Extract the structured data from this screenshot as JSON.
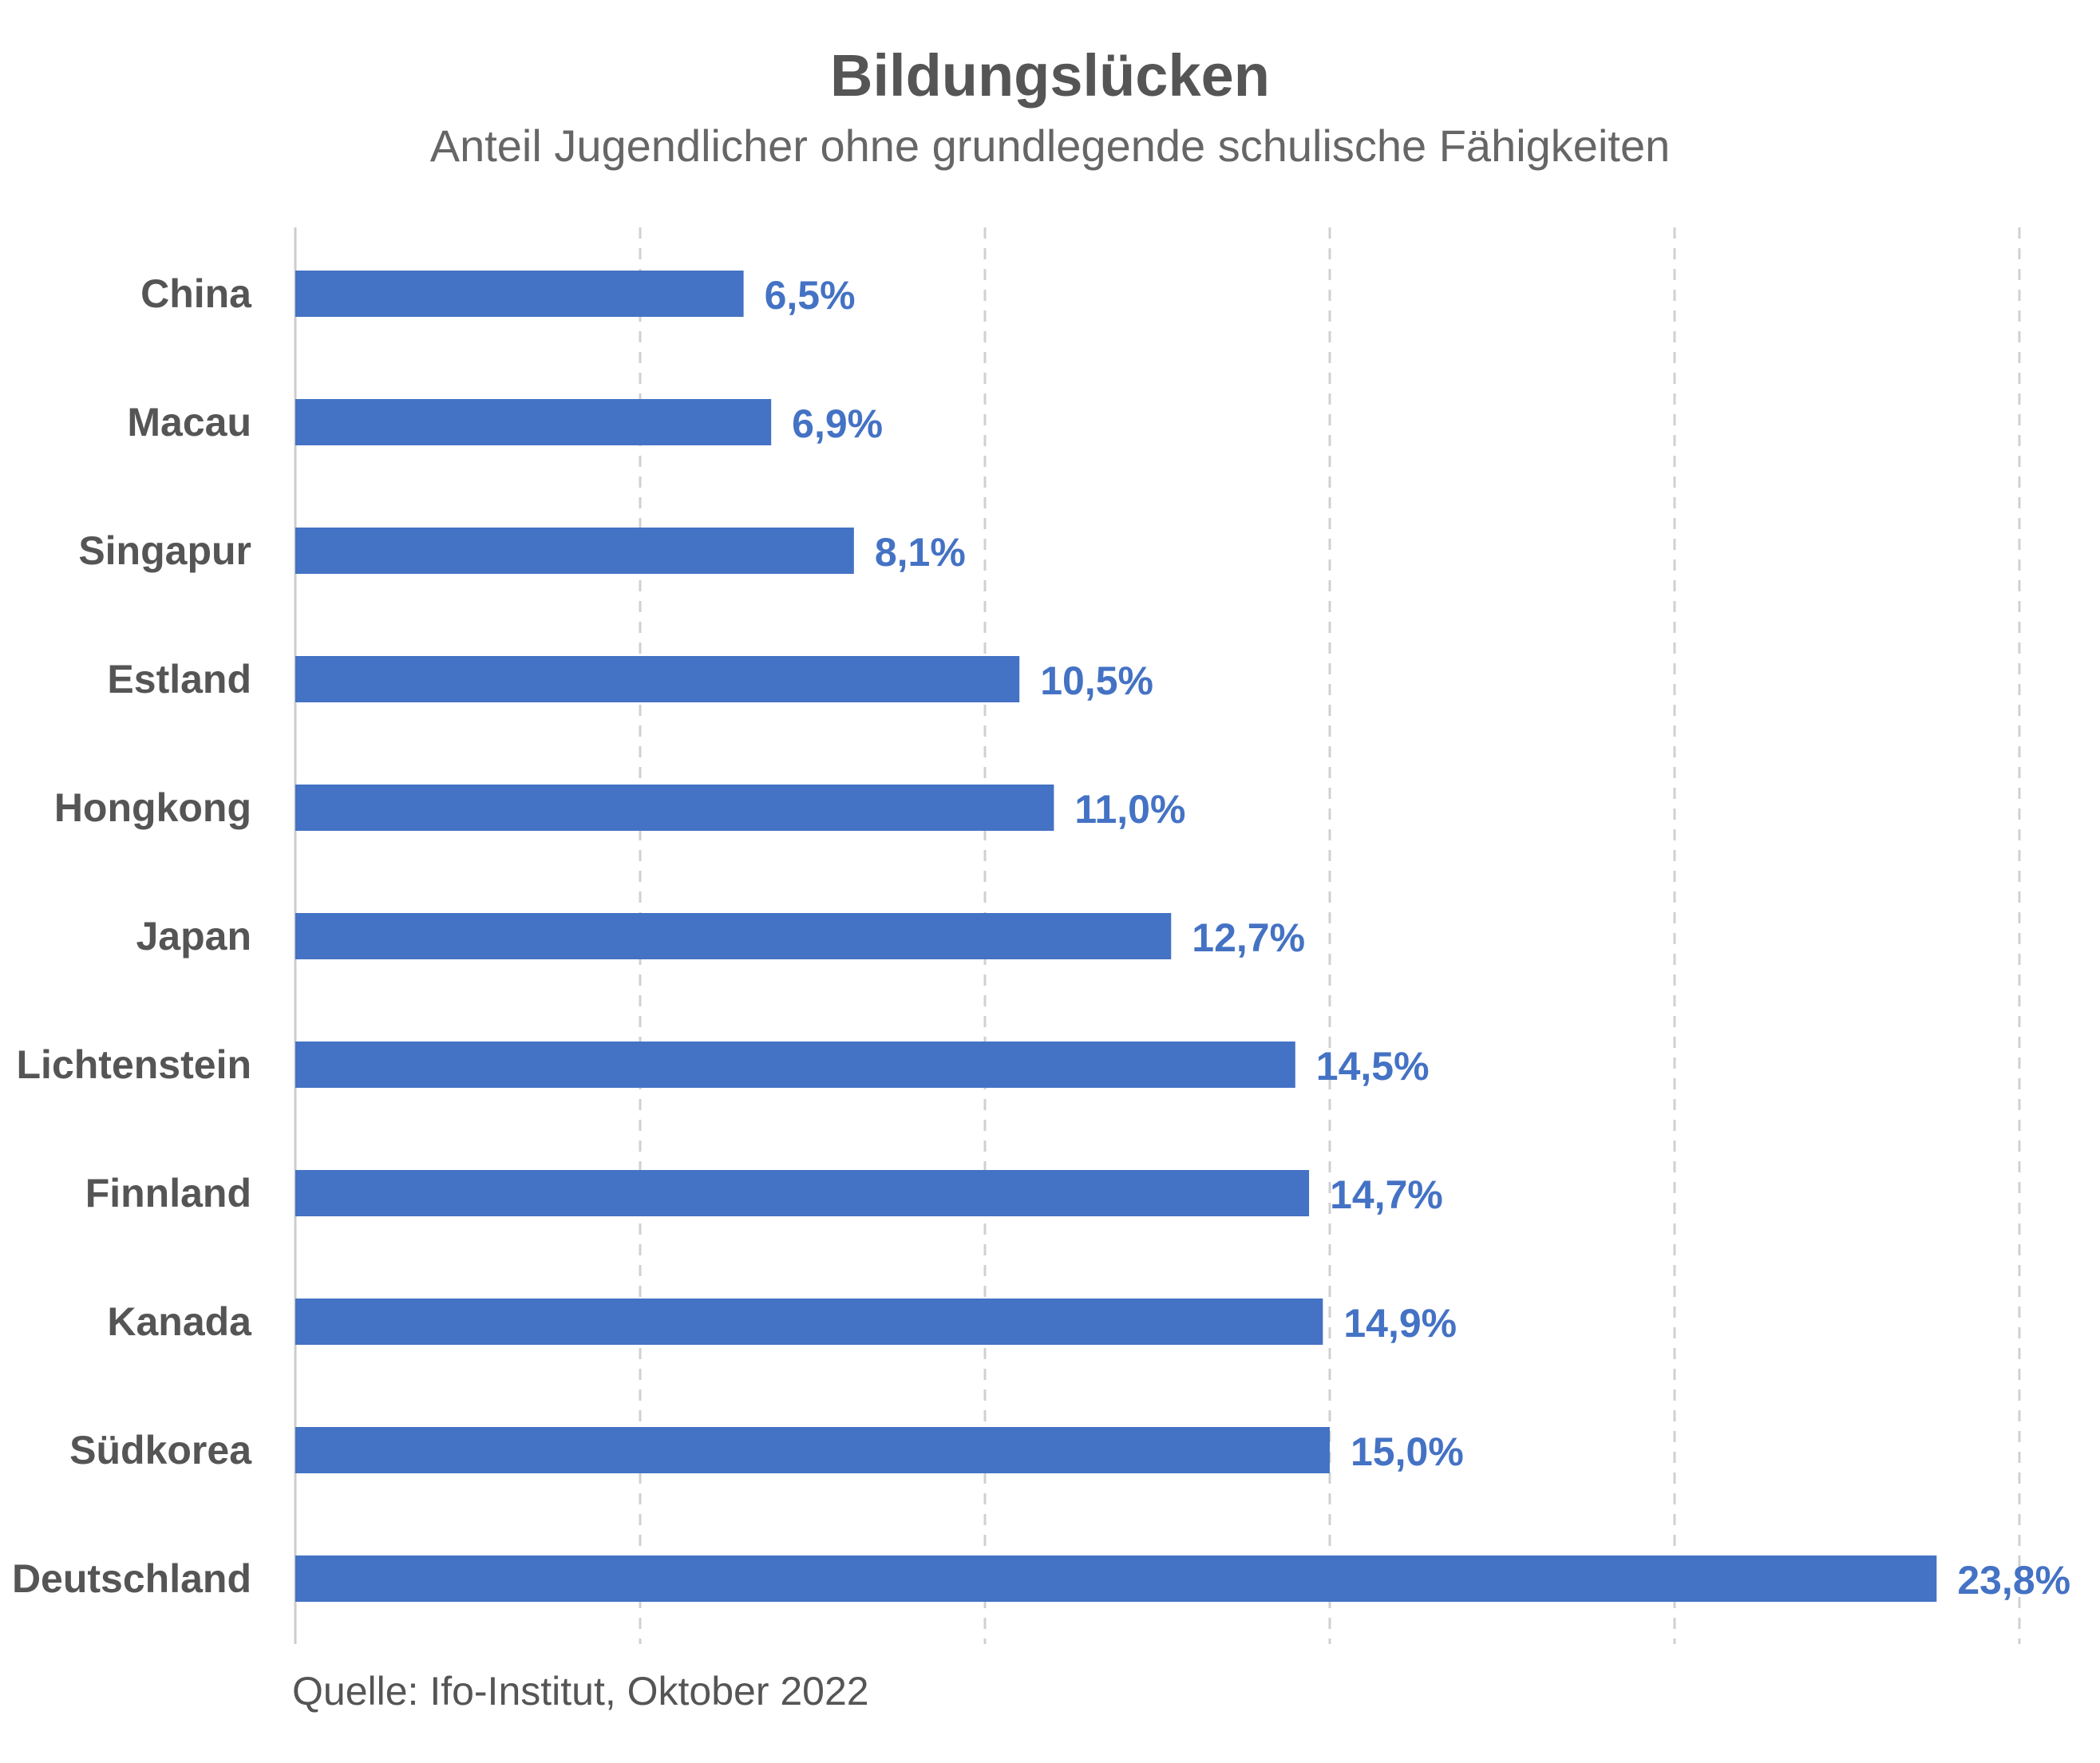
{
  "chart_data": {
    "type": "bar",
    "orientation": "horizontal",
    "title": "Bildungslücken",
    "subtitle": "Anteil Jugendlicher ohne grundlegende schulische Fähigkeiten",
    "source": "Quelle: Ifo-Institut, Oktober 2022",
    "categories": [
      "China",
      "Macau",
      "Singapur",
      "Estland",
      "Hongkong",
      "Japan",
      "Lichtenstein",
      "Finnland",
      "Kanada",
      "Südkorea",
      "Deutschland"
    ],
    "values": [
      6.5,
      6.9,
      8.1,
      10.5,
      11.0,
      12.7,
      14.5,
      14.7,
      14.9,
      15.0,
      23.8
    ],
    "value_labels": [
      "6,5%",
      "6,9%",
      "8,1%",
      "10,5%",
      "11,0%",
      "12,7%",
      "14,5%",
      "14,7%",
      "14,9%",
      "15,0%",
      "23,8%"
    ],
    "xlim": [
      0,
      25
    ],
    "grid": true,
    "grid_step": 5,
    "colors": {
      "bar": "#4472C4",
      "label": "#4472C4",
      "grid": "#d0d0d0",
      "axis": "#cccccc"
    }
  }
}
